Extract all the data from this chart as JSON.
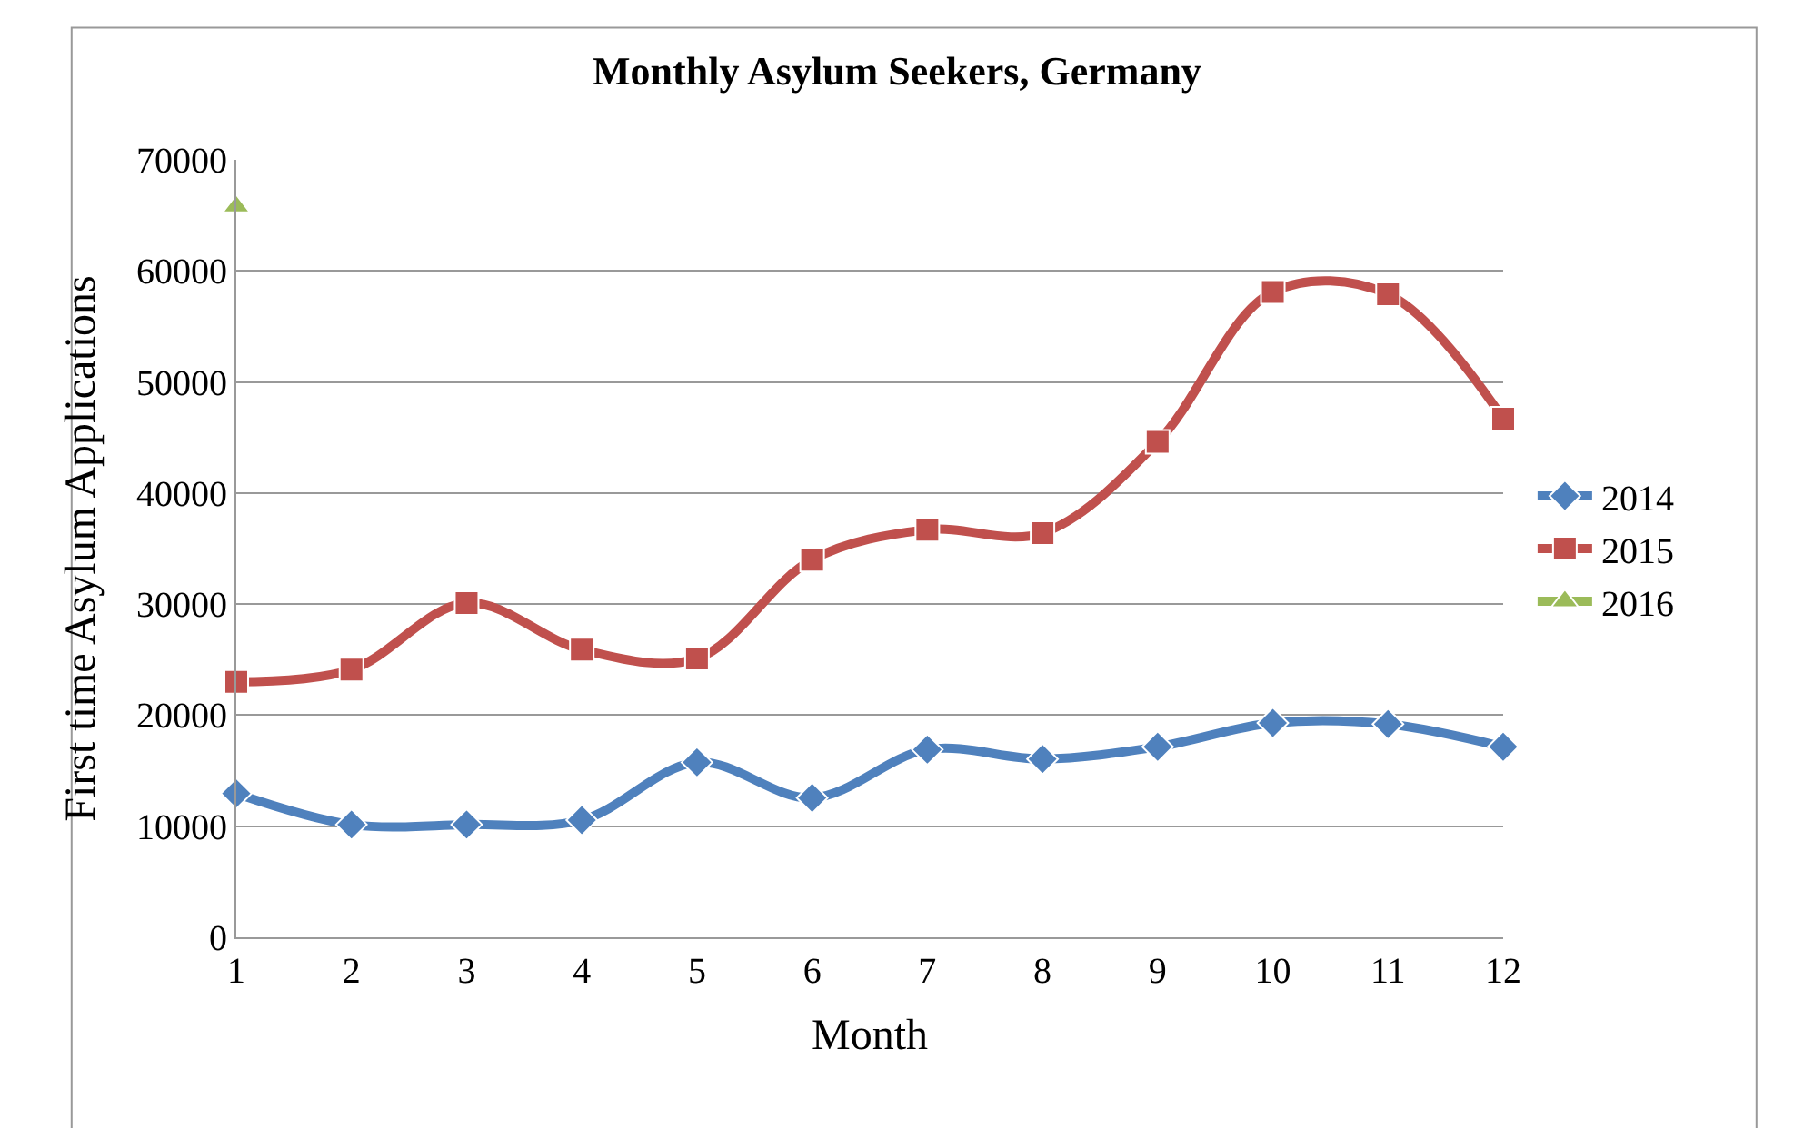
{
  "chart_data": {
    "type": "line",
    "title": "Monthly Asylum Seekers, Germany",
    "xlabel": "Month",
    "ylabel": "First time Asylum Applications",
    "x": [
      1,
      2,
      3,
      4,
      5,
      6,
      7,
      8,
      9,
      10,
      11,
      12
    ],
    "xlim": [
      1,
      12
    ],
    "xticks": [
      1,
      2,
      3,
      4,
      5,
      6,
      7,
      8,
      9,
      10,
      11,
      12
    ],
    "ylim": [
      0,
      70000
    ],
    "yticks": [
      0,
      10000,
      20000,
      30000,
      40000,
      50000,
      60000,
      70000
    ],
    "grid": "y",
    "legend": "right",
    "series": [
      {
        "name": "2014",
        "color": "#4f81bd",
        "marker": "diamond",
        "values": [
          12950,
          10150,
          10150,
          10550,
          15750,
          12550,
          16900,
          16050,
          17150,
          19300,
          19200,
          17150
        ]
      },
      {
        "name": "2015",
        "color": "#c0504d",
        "marker": "square",
        "values": [
          23000,
          24100,
          30100,
          25900,
          25100,
          34000,
          36700,
          36400,
          44600,
          58100,
          57900,
          46700
        ]
      },
      {
        "name": "2016",
        "color": "#9bbb59",
        "marker": "triangle",
        "values": [
          65800,
          null,
          null,
          null,
          null,
          null,
          null,
          null,
          null,
          null,
          null,
          null
        ]
      }
    ]
  }
}
